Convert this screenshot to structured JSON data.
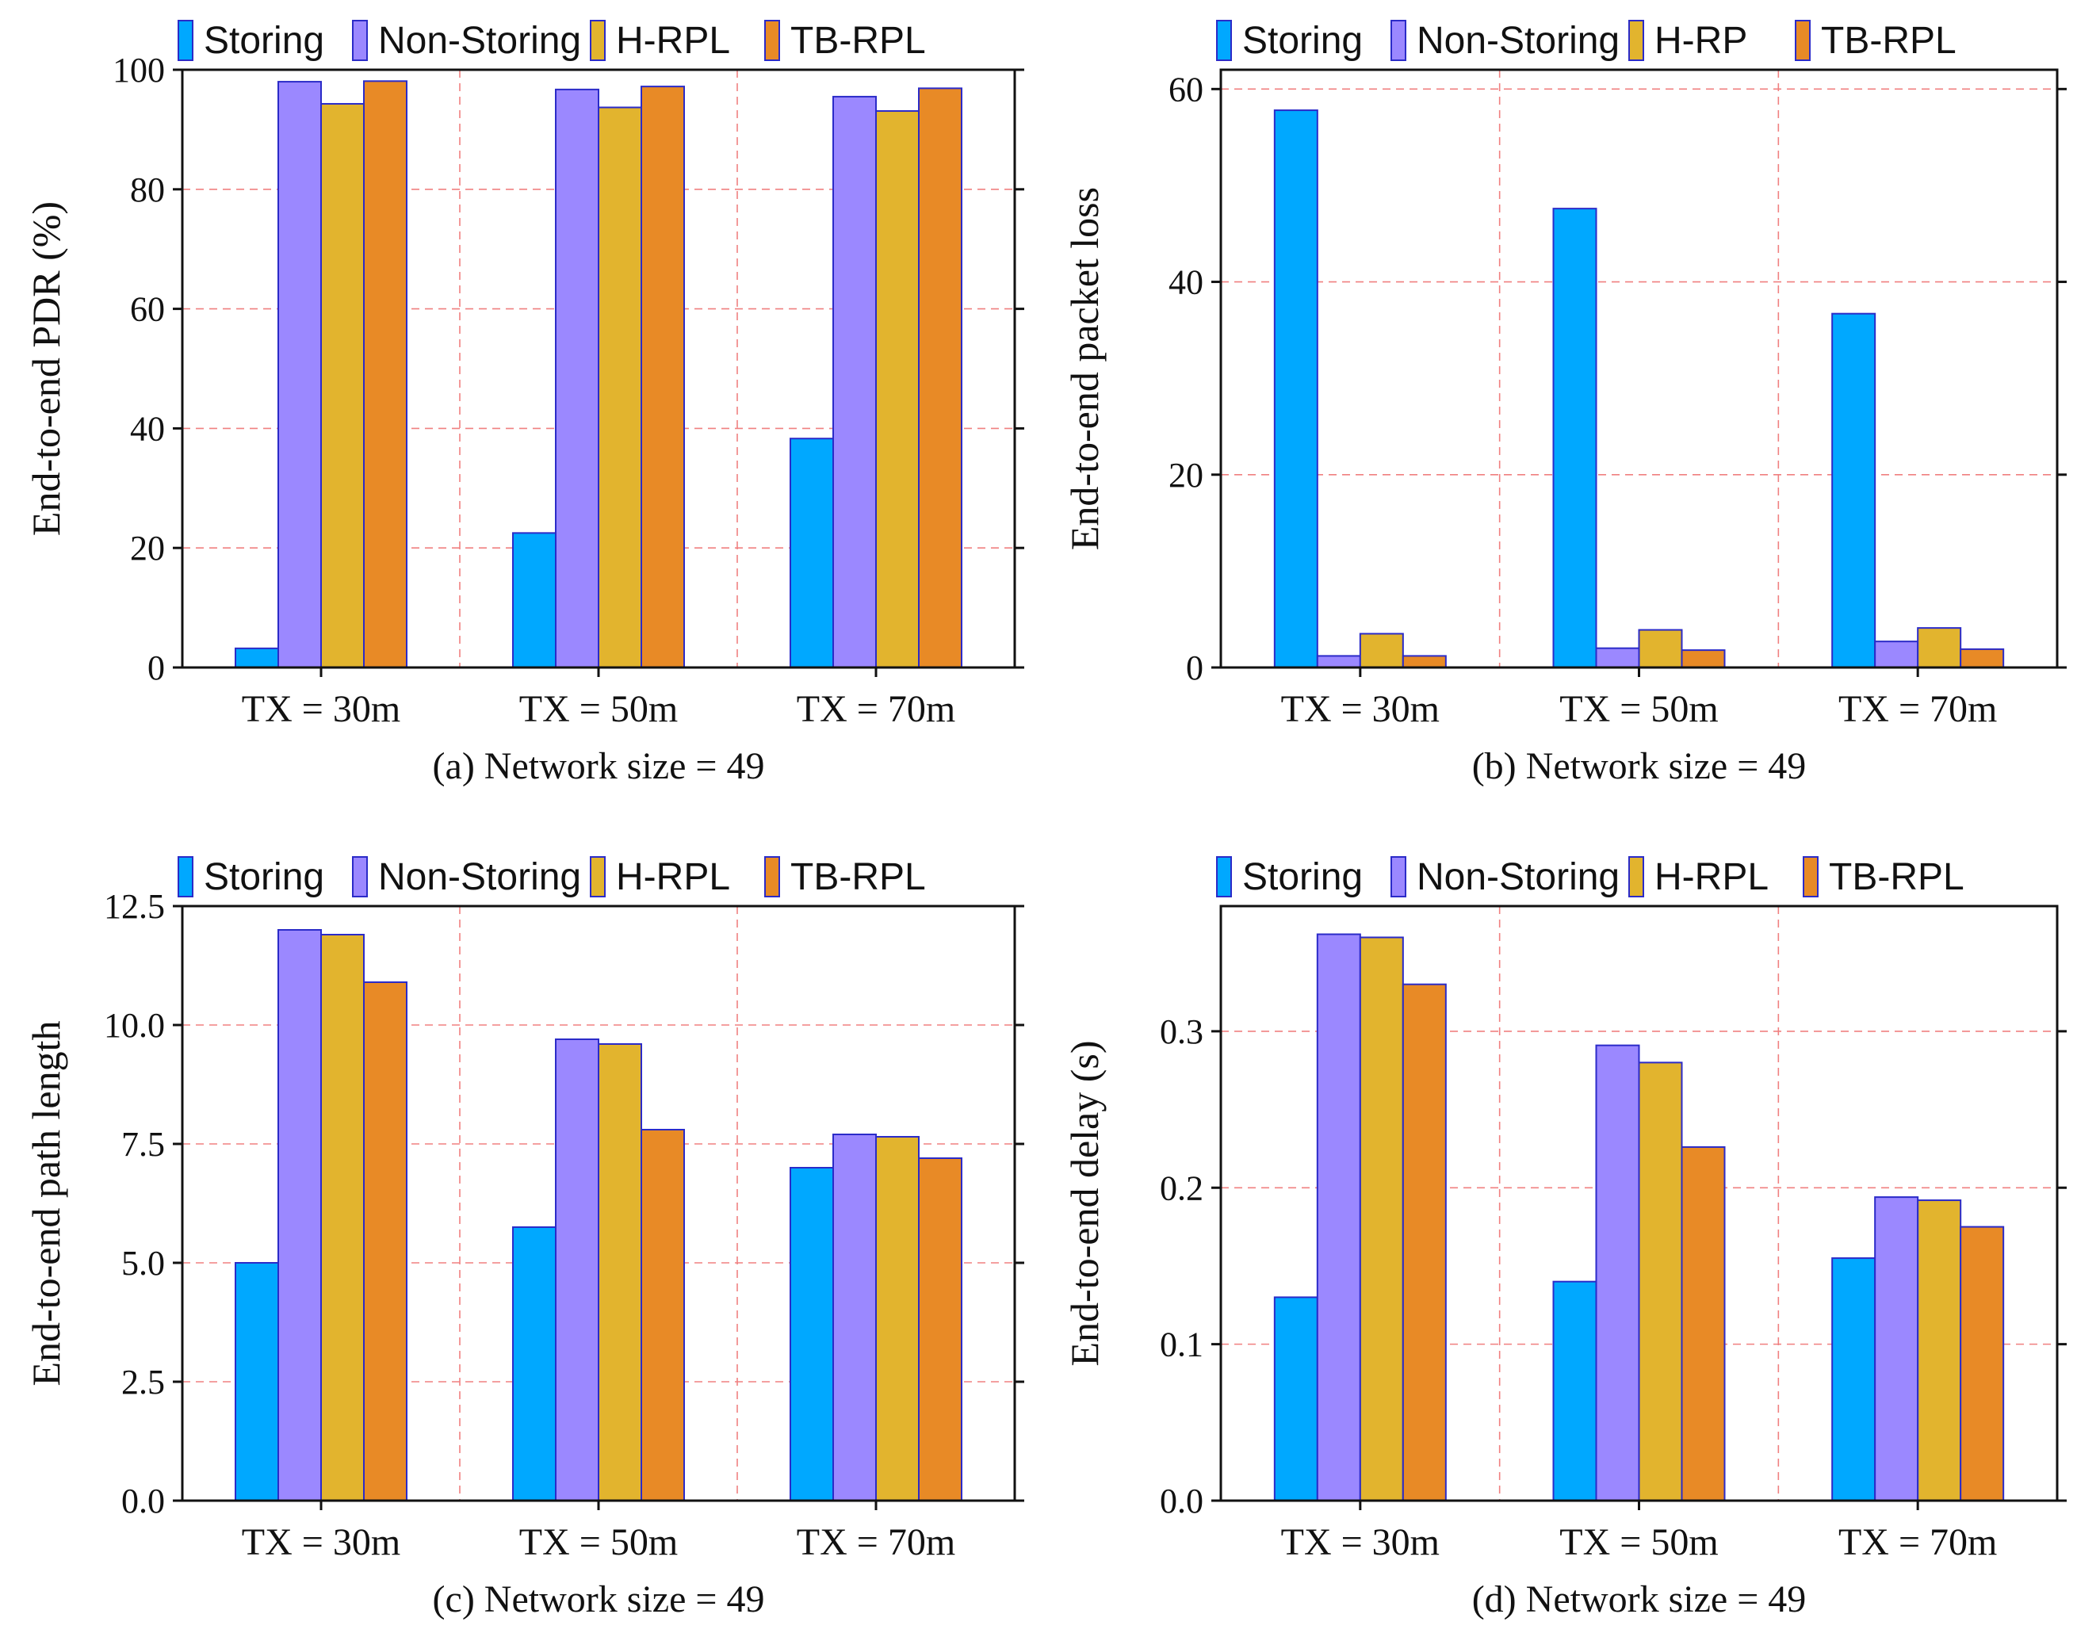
{
  "figure": {
    "title": "",
    "palette": {
      "Storing": "#00A8FF",
      "Non-Storing": "#9B88FF",
      "H-RPL": "#E2B42E",
      "TB-RPL": "#E88A26",
      "edge": "#2B2BC8",
      "grid": "#F08080"
    }
  },
  "chart_data": [
    {
      "id": "a",
      "type": "bar",
      "caption": "(a) Network size = 49",
      "ylabel": "End-to-end PDR (%)",
      "categories": [
        "TX = 30m",
        "TX = 50m",
        "TX = 70m"
      ],
      "ylim": [
        0,
        100
      ],
      "yticks": [
        0,
        20,
        40,
        60,
        80,
        100
      ],
      "ytick_labels": [
        "0",
        "20",
        "40",
        "60",
        "80",
        "100"
      ],
      "grid": true,
      "legend_position": "top",
      "series": [
        {
          "name": "Storing",
          "legend_label": "Storing",
          "values": [
            3.2,
            22.5,
            38.3
          ]
        },
        {
          "name": "Non-Storing",
          "legend_label": "Non-Storing",
          "values": [
            98.0,
            96.7,
            95.5
          ]
        },
        {
          "name": "H-RPL",
          "legend_label": "H-RPL",
          "values": [
            94.3,
            93.7,
            93.1
          ]
        },
        {
          "name": "TB-RPL",
          "legend_label": "TB-RPL",
          "values": [
            98.1,
            97.2,
            96.9
          ]
        }
      ]
    },
    {
      "id": "b",
      "type": "bar",
      "caption": "(b) Network size = 49",
      "ylabel": "End-to-end packet loss",
      "categories": [
        "TX = 30m",
        "TX = 50m",
        "TX = 70m"
      ],
      "ylim": [
        0,
        62
      ],
      "yticks": [
        0,
        20,
        40,
        60
      ],
      "ytick_labels": [
        "0",
        "20",
        "40",
        "60"
      ],
      "grid": true,
      "legend_position": "top",
      "series": [
        {
          "name": "Storing",
          "legend_label": "Storing",
          "values": [
            57.8,
            47.6,
            36.7
          ]
        },
        {
          "name": "Non-Storing",
          "legend_label": "Non-Storing",
          "values": [
            1.2,
            2.0,
            2.7
          ]
        },
        {
          "name": "H-RPL",
          "legend_label": "H-RP",
          "values": [
            3.5,
            3.9,
            4.1
          ]
        },
        {
          "name": "TB-RPL",
          "legend_label": "TB-RPL",
          "values": [
            1.2,
            1.8,
            1.9
          ]
        }
      ]
    },
    {
      "id": "c",
      "type": "bar",
      "caption": "(c) Network size = 49",
      "ylabel": "End-to-end path length",
      "categories": [
        "TX = 30m",
        "TX = 50m",
        "TX = 70m"
      ],
      "ylim": [
        0,
        12.5
      ],
      "yticks": [
        0,
        2.5,
        5,
        7.5,
        10,
        12.5
      ],
      "ytick_labels": [
        "0.0",
        "2.5",
        "5.0",
        "7.5",
        "10.0",
        "12.5"
      ],
      "grid": true,
      "legend_position": "top",
      "series": [
        {
          "name": "Storing",
          "legend_label": "Storing",
          "values": [
            5.0,
            5.75,
            7.0
          ]
        },
        {
          "name": "Non-Storing",
          "legend_label": "Non-Storing",
          "values": [
            12.0,
            9.7,
            7.7
          ]
        },
        {
          "name": "H-RPL",
          "legend_label": "H-RPL",
          "values": [
            11.9,
            9.6,
            7.65
          ]
        },
        {
          "name": "TB-RPL",
          "legend_label": "TB-RPL",
          "values": [
            10.9,
            7.8,
            7.2
          ]
        }
      ]
    },
    {
      "id": "d",
      "type": "bar",
      "caption": "(d) Network size = 49",
      "ylabel": "End-to-end delay (s)",
      "categories": [
        "TX = 30m",
        "TX = 50m",
        "TX = 70m"
      ],
      "ylim": [
        0,
        0.38
      ],
      "yticks": [
        0,
        0.1,
        0.2,
        0.3
      ],
      "ytick_labels": [
        "0.0",
        "0.1",
        "0.2",
        "0.3"
      ],
      "grid": true,
      "legend_position": "top",
      "series": [
        {
          "name": "Storing",
          "legend_label": "Storing",
          "values": [
            0.13,
            0.14,
            0.155
          ]
        },
        {
          "name": "Non-Storing",
          "legend_label": "Non-Storing",
          "values": [
            0.362,
            0.291,
            0.194
          ]
        },
        {
          "name": "H-RPL",
          "legend_label": "H-RPL",
          "values": [
            0.36,
            0.28,
            0.192
          ]
        },
        {
          "name": "TB-RPL",
          "legend_label": "TB-RPL",
          "values": [
            0.33,
            0.226,
            0.175
          ]
        }
      ]
    }
  ]
}
